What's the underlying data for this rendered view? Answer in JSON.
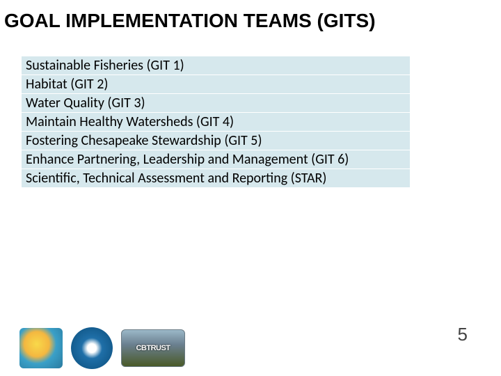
{
  "title": "GOAL IMPLEMENTATION TEAMS (GITS)",
  "table": {
    "rows": [
      "Sustainable Fisheries (GIT 1)",
      "Habitat (GIT 2)",
      "Water Quality (GIT 3)",
      "Maintain Healthy Watersheds (GIT 4)",
      "Fostering Chesapeake Stewardship (GIT 5)",
      "Enhance Partnering, Leadership and Management (GIT 6)",
      "Scientific, Technical Assessment and Reporting (STAR)"
    ],
    "row_bg": "#d6e8ed",
    "border_color": "#ffffff",
    "font_size": 20
  },
  "page_number": "5",
  "logos": {
    "items": [
      {
        "name": "chesapeake-bay-program-logo",
        "text": ""
      },
      {
        "name": "epa-seal-logo",
        "text": ""
      },
      {
        "name": "cbtrust-logo",
        "text": "CBTRUST"
      }
    ]
  },
  "colors": {
    "title_color": "#000000",
    "background": "#ffffff",
    "page_number_color": "#444444"
  }
}
